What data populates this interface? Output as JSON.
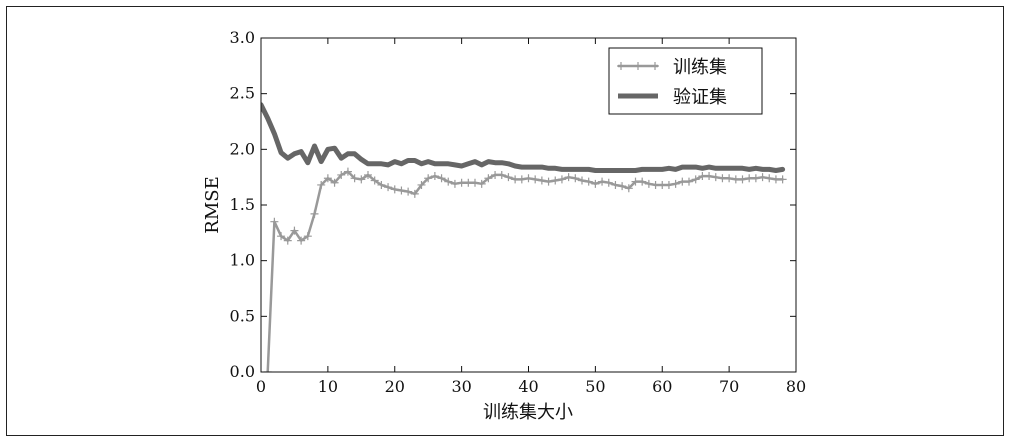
{
  "chart_data": {
    "type": "line",
    "title": "",
    "xlabel": "训练集大小",
    "ylabel": "RMSE",
    "xlim": [
      0,
      80
    ],
    "ylim": [
      0.0,
      3.0
    ],
    "x_ticks": [
      0,
      10,
      20,
      30,
      40,
      50,
      60,
      70,
      80
    ],
    "x_tick_labels": [
      "0",
      "10",
      "20",
      "30",
      "40",
      "50",
      "60",
      "70",
      "80"
    ],
    "y_ticks": [
      0.0,
      0.5,
      1.0,
      1.5,
      2.0,
      2.5,
      3.0
    ],
    "y_tick_labels": [
      "0.0",
      "0.5",
      "1.0",
      "1.5",
      "2.0",
      "2.5",
      "3.0"
    ],
    "grid": false,
    "legend_position": "top-right",
    "series": [
      {
        "name": "训练集",
        "color": "#999999",
        "marker": "plus",
        "x": [
          1,
          2,
          3,
          4,
          5,
          6,
          7,
          8,
          9,
          10,
          11,
          12,
          13,
          14,
          15,
          16,
          17,
          18,
          19,
          20,
          21,
          22,
          23,
          24,
          25,
          26,
          27,
          28,
          29,
          30,
          31,
          32,
          33,
          34,
          35,
          36,
          37,
          38,
          39,
          40,
          41,
          42,
          43,
          44,
          45,
          46,
          47,
          48,
          49,
          50,
          51,
          52,
          53,
          54,
          55,
          56,
          57,
          58,
          59,
          60,
          61,
          62,
          63,
          64,
          65,
          66,
          67,
          68,
          69,
          70,
          71,
          72,
          73,
          74,
          75,
          76,
          77,
          78
        ],
        "y": [
          0.0,
          1.35,
          1.22,
          1.18,
          1.27,
          1.18,
          1.22,
          1.42,
          1.68,
          1.74,
          1.7,
          1.77,
          1.8,
          1.74,
          1.73,
          1.77,
          1.72,
          1.68,
          1.66,
          1.64,
          1.63,
          1.62,
          1.6,
          1.68,
          1.74,
          1.76,
          1.74,
          1.71,
          1.69,
          1.7,
          1.7,
          1.7,
          1.69,
          1.74,
          1.77,
          1.77,
          1.75,
          1.73,
          1.73,
          1.74,
          1.73,
          1.72,
          1.71,
          1.72,
          1.73,
          1.75,
          1.74,
          1.72,
          1.71,
          1.69,
          1.71,
          1.7,
          1.68,
          1.67,
          1.65,
          1.71,
          1.71,
          1.69,
          1.68,
          1.68,
          1.68,
          1.69,
          1.71,
          1.71,
          1.73,
          1.76,
          1.76,
          1.75,
          1.74,
          1.74,
          1.73,
          1.73,
          1.74,
          1.74,
          1.75,
          1.74,
          1.73,
          1.73
        ]
      },
      {
        "name": "验证集",
        "color": "#666666",
        "marker": "none",
        "x": [
          0,
          1,
          2,
          3,
          4,
          5,
          6,
          7,
          8,
          9,
          10,
          11,
          12,
          13,
          14,
          15,
          16,
          17,
          18,
          19,
          20,
          21,
          22,
          23,
          24,
          25,
          26,
          27,
          28,
          29,
          30,
          31,
          32,
          33,
          34,
          35,
          36,
          37,
          38,
          39,
          40,
          41,
          42,
          43,
          44,
          45,
          46,
          47,
          48,
          49,
          50,
          51,
          52,
          53,
          54,
          55,
          56,
          57,
          58,
          59,
          60,
          61,
          62,
          63,
          64,
          65,
          66,
          67,
          68,
          69,
          70,
          71,
          72,
          73,
          74,
          75,
          76,
          77,
          78
        ],
        "y": [
          2.4,
          2.28,
          2.14,
          1.97,
          1.92,
          1.96,
          1.98,
          1.88,
          2.03,
          1.89,
          2.0,
          2.01,
          1.92,
          1.96,
          1.96,
          1.91,
          1.87,
          1.87,
          1.87,
          1.86,
          1.89,
          1.87,
          1.9,
          1.9,
          1.87,
          1.89,
          1.87,
          1.87,
          1.87,
          1.86,
          1.85,
          1.87,
          1.89,
          1.86,
          1.89,
          1.88,
          1.88,
          1.87,
          1.85,
          1.84,
          1.84,
          1.84,
          1.84,
          1.83,
          1.83,
          1.82,
          1.82,
          1.82,
          1.82,
          1.82,
          1.81,
          1.81,
          1.81,
          1.81,
          1.81,
          1.81,
          1.81,
          1.82,
          1.82,
          1.82,
          1.82,
          1.83,
          1.82,
          1.84,
          1.84,
          1.84,
          1.83,
          1.84,
          1.83,
          1.83,
          1.83,
          1.83,
          1.83,
          1.82,
          1.83,
          1.82,
          1.82,
          1.81,
          1.82
        ]
      }
    ]
  }
}
